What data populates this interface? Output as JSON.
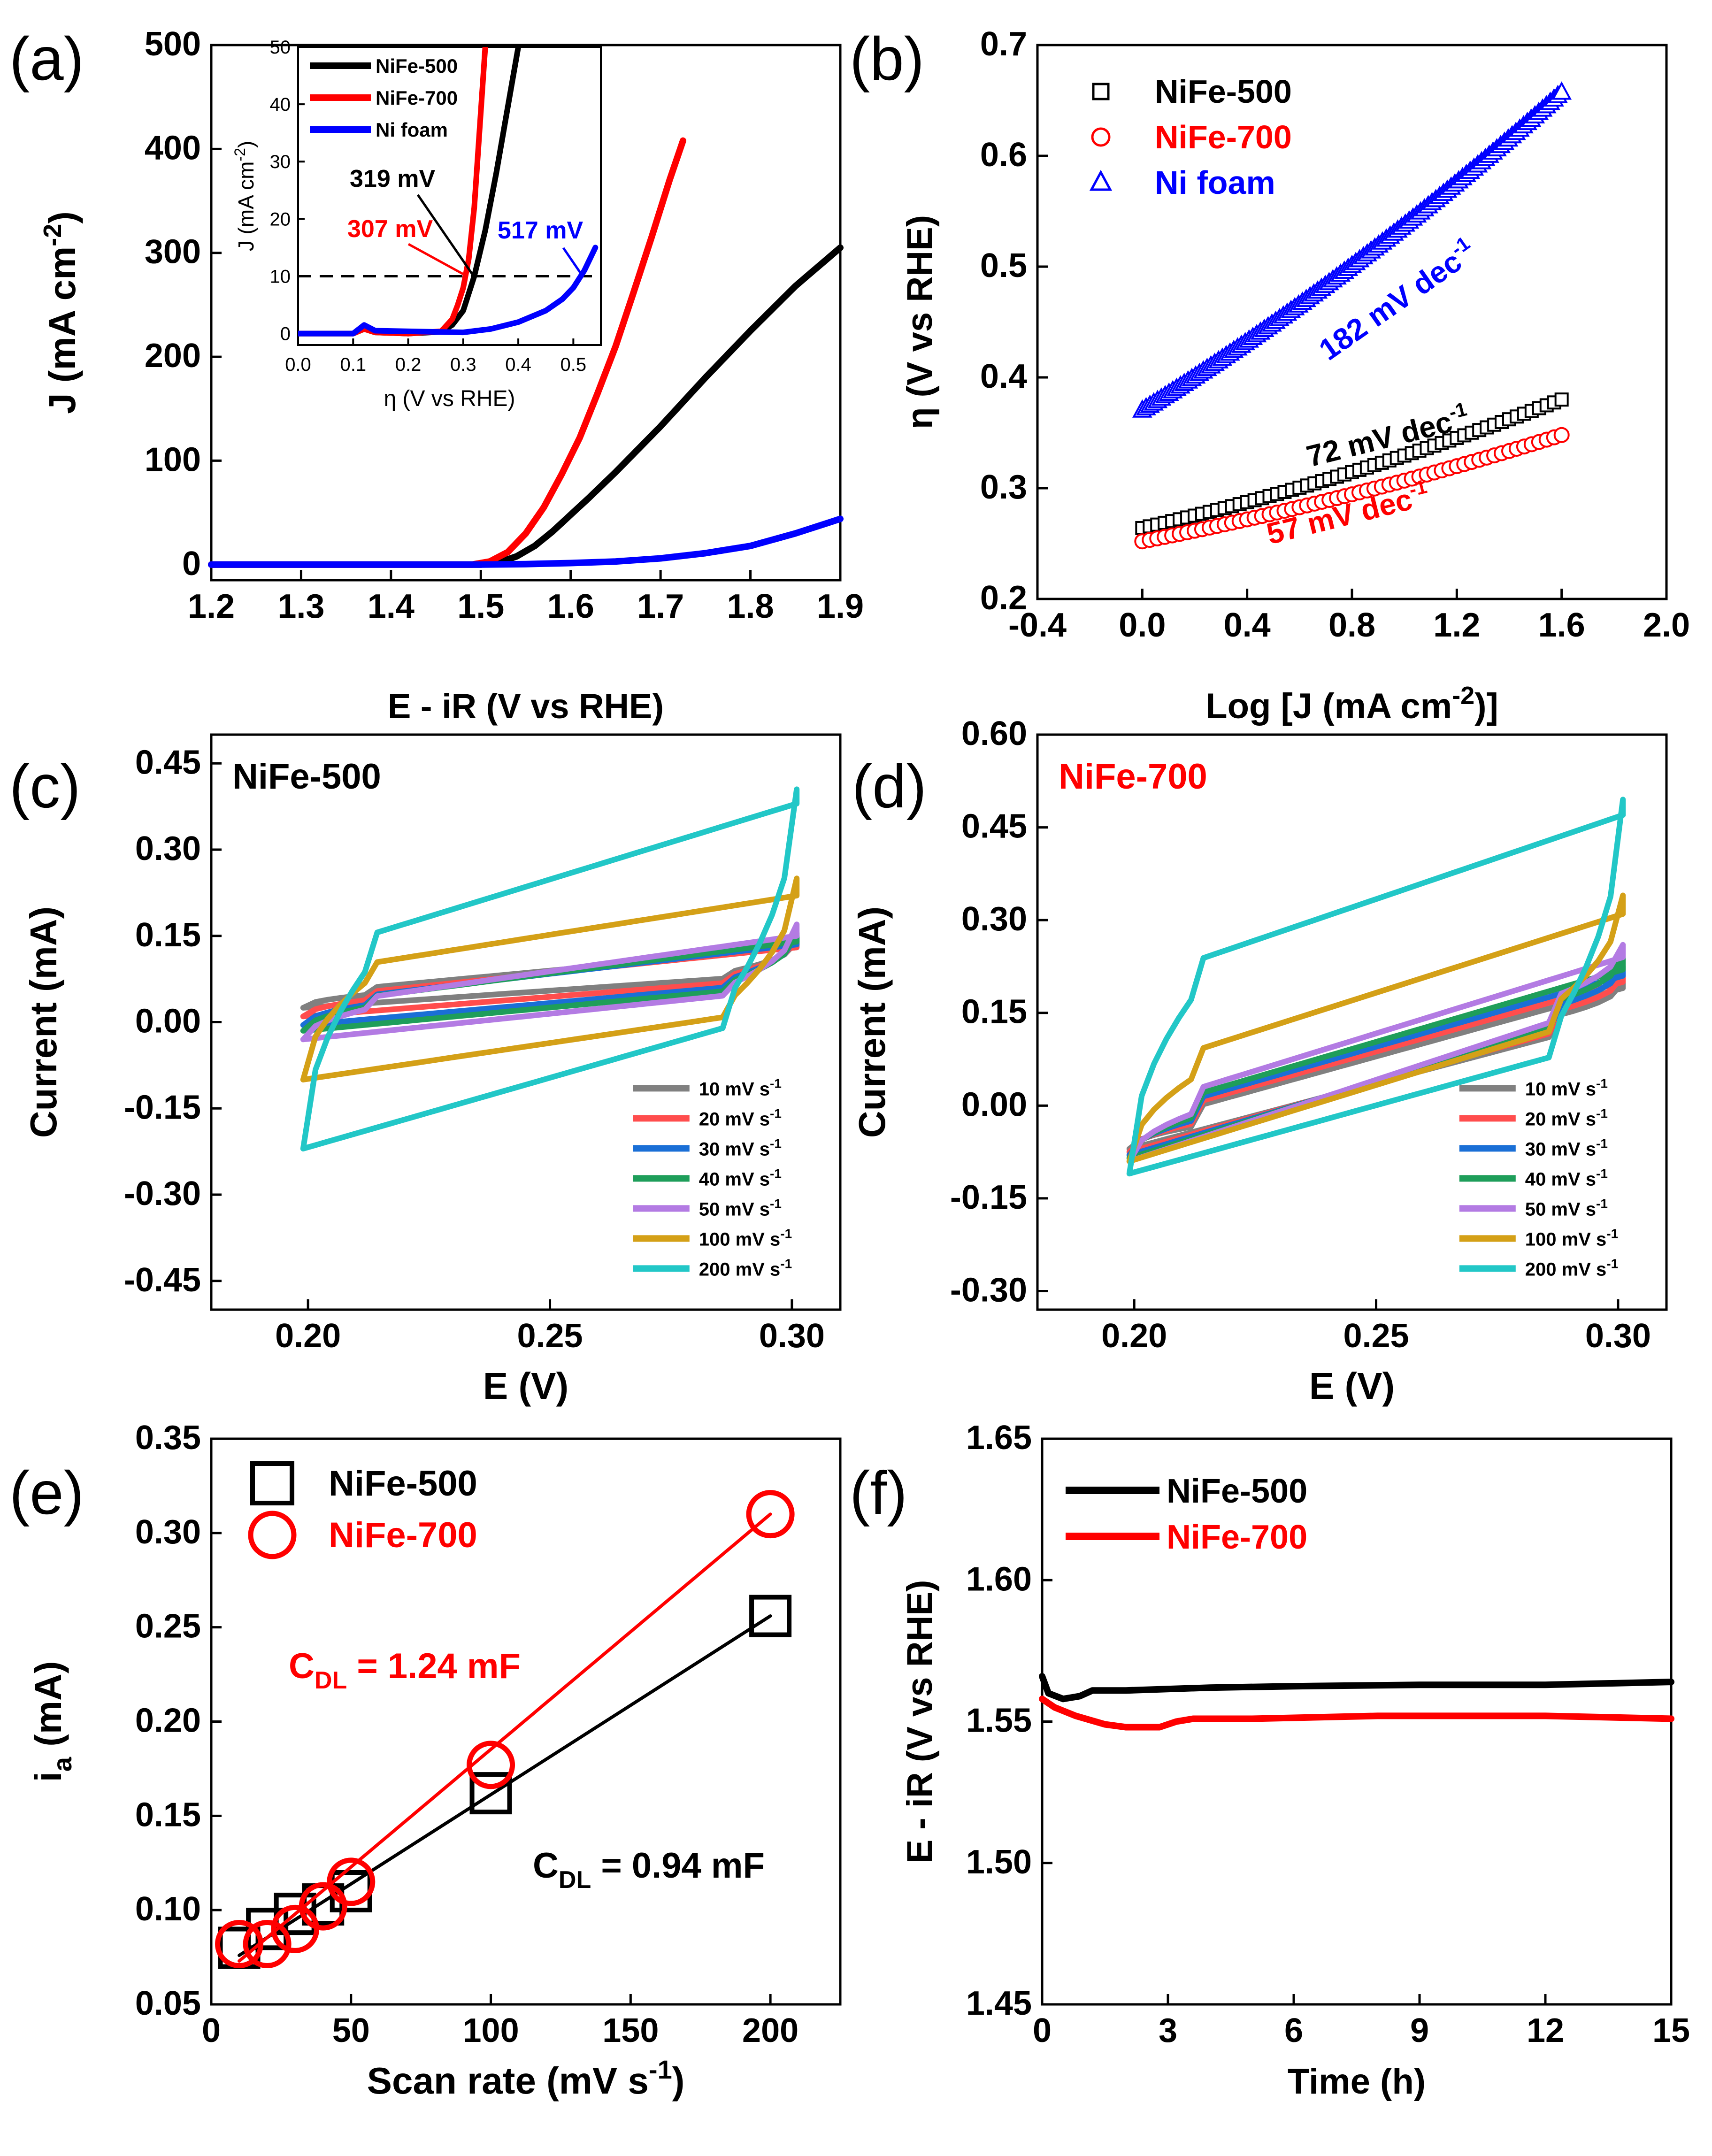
{
  "chart_data": [
    {
      "type": "line",
      "panel": "(a)",
      "xlabel": "E - iR (V vs RHE)",
      "ylabel": "J (mA cm",
      "ylabel_sup": "-2",
      "ylabel_close": ")",
      "xlim": [
        1.2,
        1.9
      ],
      "ylim": [
        -15,
        500
      ],
      "xticks": [
        "1.2",
        "1.3",
        "1.4",
        "1.5",
        "1.6",
        "1.7",
        "1.8",
        "1.9"
      ],
      "yticks": [
        "0",
        "100",
        "200",
        "300",
        "400",
        "500"
      ],
      "series": [
        {
          "name": "NiFe-500",
          "color": "#000000",
          "x": [
            1.2,
            1.5,
            1.52,
            1.54,
            1.56,
            1.58,
            1.6,
            1.62,
            1.65,
            1.7,
            1.75,
            1.8,
            1.85,
            1.9
          ],
          "y": [
            0,
            0,
            2,
            8,
            18,
            32,
            48,
            64,
            89,
            133,
            180,
            225,
            268,
            305
          ]
        },
        {
          "name": "NiFe-700",
          "color": "#ff0000",
          "x": [
            1.2,
            1.49,
            1.51,
            1.53,
            1.55,
            1.57,
            1.59,
            1.61,
            1.63,
            1.65,
            1.67,
            1.69,
            1.71,
            1.725
          ],
          "y": [
            0,
            0,
            3,
            12,
            30,
            55,
            87,
            122,
            165,
            210,
            262,
            315,
            370,
            408
          ]
        },
        {
          "name": "Ni foam",
          "color": "#0000ff",
          "x": [
            1.2,
            1.5,
            1.55,
            1.6,
            1.65,
            1.7,
            1.75,
            1.8,
            1.85,
            1.9
          ],
          "y": [
            0,
            0,
            0.5,
            1.5,
            3,
            6,
            11,
            18,
            30,
            44
          ]
        }
      ],
      "inset": {
        "xlabel": "η (V vs RHE)",
        "ylabel": "J (mA cm",
        "ylabel_sup": "-2",
        "ylabel_close": ")",
        "xlim": [
          0,
          0.55
        ],
        "ylim": [
          -2,
          50
        ],
        "xticks": [
          "0.0",
          "0.1",
          "0.2",
          "0.3",
          "0.4",
          "0.5"
        ],
        "yticks": [
          "0",
          "10",
          "20",
          "30",
          "40",
          "50"
        ],
        "reference_j": 10,
        "legend": [
          "NiFe-500",
          "NiFe-700",
          "Ni foam"
        ],
        "annotations": [
          {
            "text": "319 mV",
            "color": "#000000"
          },
          {
            "text": "307 mV",
            "color": "#ff0000"
          },
          {
            "text": "517 mV",
            "color": "#0000ff"
          }
        ],
        "series": [
          {
            "name": "NiFe-500",
            "color": "#000000",
            "x": [
              0,
              0.1,
              0.12,
              0.14,
              0.2,
              0.26,
              0.28,
              0.3,
              0.32,
              0.34,
              0.36,
              0.38,
              0.4
            ],
            "y": [
              0,
              0,
              0.8,
              0.2,
              0,
              0.3,
              1.5,
              4,
              10,
              18,
              28,
              39,
              50
            ]
          },
          {
            "name": "NiFe-700",
            "color": "#ff0000",
            "x": [
              0,
              0.1,
              0.12,
              0.14,
              0.2,
              0.26,
              0.28,
              0.29,
              0.3,
              0.31,
              0.32,
              0.33,
              0.34
            ],
            "y": [
              0,
              0,
              0.8,
              0.2,
              0,
              0.4,
              2.5,
              5,
              8,
              13,
              22,
              36,
              50
            ]
          },
          {
            "name": "Ni foam",
            "color": "#0000ff",
            "x": [
              0,
              0.1,
              0.12,
              0.14,
              0.3,
              0.35,
              0.4,
              0.45,
              0.48,
              0.5,
              0.52,
              0.54
            ],
            "y": [
              0,
              0,
              1.5,
              0.5,
              0.2,
              0.8,
              2,
              4,
              6,
              8,
              11,
              15
            ]
          }
        ]
      }
    },
    {
      "type": "scatter",
      "panel": "(b)",
      "xlabel": "Log [J (mA cm",
      "xlabel_sup": "-2",
      "xlabel_close": ")]",
      "ylabel": "η (V vs RHE)",
      "xlim": [
        -0.4,
        2.0
      ],
      "ylim": [
        0.2,
        0.7
      ],
      "xticks": [
        "-0.4",
        "0.0",
        "0.4",
        "0.8",
        "1.2",
        "1.6",
        "2.0"
      ],
      "yticks": [
        "0.2",
        "0.3",
        "0.4",
        "0.5",
        "0.6",
        "0.7"
      ],
      "legend": [
        "NiFe-500",
        "NiFe-700",
        "Ni foam"
      ],
      "slope_labels": [
        {
          "text": "72 mV dec",
          "sup": "-1",
          "color": "#000000"
        },
        {
          "text": "57 mV dec",
          "sup": "-1",
          "color": "#ff0000"
        },
        {
          "text": "182 mV dec",
          "sup": "-1",
          "color": "#0000ff"
        }
      ],
      "series": [
        {
          "name": "NiFe-500",
          "color": "#000000",
          "marker": "square",
          "y0": 0.264,
          "y1": 0.38,
          "x0": 0.0,
          "x1": 1.6,
          "curve": 0.35
        },
        {
          "name": "NiFe-700",
          "color": "#ff0000",
          "marker": "circle",
          "y0": 0.252,
          "y1": 0.348,
          "x0": 0.0,
          "x1": 1.6,
          "curve": 0.3
        },
        {
          "name": "Ni foam",
          "color": "#0000ff",
          "marker": "triangle",
          "y0": 0.37,
          "y1": 0.657,
          "x0": 0.0,
          "x1": 1.6,
          "curve": 0.22
        }
      ]
    },
    {
      "type": "line",
      "panel": "(c)",
      "title": "NiFe-500",
      "title_color": "#000000",
      "xlabel": "E (V)",
      "ylabel": "Current (mA)",
      "xlim": [
        0.18,
        0.31
      ],
      "ylim": [
        -0.5,
        0.5
      ],
      "xticks": [
        "0.20",
        "0.25",
        "0.30"
      ],
      "yticks": [
        "-0.45",
        "-0.30",
        "-0.15",
        "0.00",
        "0.15",
        "0.30",
        "0.45"
      ],
      "legend": [
        "10 mV s",
        "20 mV s",
        "30 mV s",
        "40 mV s",
        "50 mV s",
        "100 mV s",
        "200 mV s"
      ],
      "legend_sup": "-1",
      "series": [
        {
          "name": "10 mV s-1",
          "color": "#808080",
          "fwd": [
            0.035,
            0.13
          ],
          "rev": [
            0.095,
            0.025
          ],
          "end_high": 0.14
        },
        {
          "name": "20 mV s-1",
          "color": "#ff4d4d",
          "fwd": [
            0.025,
            0.13
          ],
          "rev": [
            0.09,
            0.01
          ],
          "end_high": 0.145
        },
        {
          "name": "30 mV s-1",
          "color": "#1a6fd6",
          "fwd": [
            0.015,
            0.135
          ],
          "rev": [
            0.085,
            -0.005
          ],
          "end_high": 0.15
        },
        {
          "name": "40 mV s-1",
          "color": "#1e9e5a",
          "fwd": [
            0.01,
            0.14
          ],
          "rev": [
            0.08,
            -0.015
          ],
          "end_high": 0.155
        },
        {
          "name": "50 mV s-1",
          "color": "#b37be3",
          "fwd": [
            0.005,
            0.15
          ],
          "rev": [
            0.075,
            -0.03
          ],
          "end_high": 0.17
        },
        {
          "name": "100 mV s-1",
          "color": "#d4a017",
          "fwd": [
            0.06,
            0.22
          ],
          "rev": [
            0.05,
            -0.1
          ],
          "end_high": 0.25
        },
        {
          "name": "200 mV s-1",
          "color": "#22c7c7",
          "fwd": [
            0.07,
            0.38
          ],
          "rev": [
            0.07,
            -0.22
          ],
          "end_high": 0.405
        }
      ]
    },
    {
      "type": "line",
      "panel": "(d)",
      "title": "NiFe-700",
      "title_color": "#ff0000",
      "xlabel": "E (V)",
      "ylabel": "Current (mA)",
      "xlim": [
        0.18,
        0.31
      ],
      "ylim": [
        -0.33,
        0.6
      ],
      "xticks": [
        "0.20",
        "0.25",
        "0.30"
      ],
      "yticks": [
        "-0.30",
        "-0.15",
        "0.00",
        "0.15",
        "0.30",
        "0.45",
        "0.60"
      ],
      "legend": [
        "10 mV s",
        "20 mV s",
        "30 mV s",
        "40 mV s",
        "50 mV s",
        "100 mV s",
        "200 mV s"
      ],
      "legend_sup": "-1",
      "series": [
        {
          "name": "10 mV s-1",
          "color": "#808080",
          "fwd": [
            -0.07,
            0.19
          ],
          "rev": [
            0.18,
            -0.07
          ],
          "end_high": 0.2
        },
        {
          "name": "20 mV s-1",
          "color": "#ff4d4d",
          "fwd": [
            -0.065,
            0.2
          ],
          "rev": [
            0.19,
            -0.075
          ],
          "end_high": 0.21
        },
        {
          "name": "30 mV s-1",
          "color": "#1a6fd6",
          "fwd": [
            -0.06,
            0.21
          ],
          "rev": [
            0.2,
            -0.08
          ],
          "end_high": 0.225
        },
        {
          "name": "40 mV s-1",
          "color": "#1e9e5a",
          "fwd": [
            -0.055,
            0.22
          ],
          "rev": [
            0.21,
            -0.085
          ],
          "end_high": 0.24
        },
        {
          "name": "50 mV s-1",
          "color": "#b37be3",
          "fwd": [
            -0.05,
            0.24
          ],
          "rev": [
            0.22,
            -0.09
          ],
          "end_high": 0.26
        },
        {
          "name": "100 mV s-1",
          "color": "#d4a017",
          "fwd": [
            0.01,
            0.31
          ],
          "rev": [
            0.2,
            -0.09
          ],
          "end_high": 0.34
        },
        {
          "name": "200 mV s-1",
          "color": "#22c7c7",
          "fwd": [
            0.15,
            0.47
          ],
          "rev": [
            0.15,
            -0.11
          ],
          "end_high": 0.495
        }
      ]
    },
    {
      "type": "scatter",
      "panel": "(e)",
      "xlabel": "Scan rate (mV s",
      "xlabel_sup": "-1",
      "xlabel_close": ")",
      "ylabel": "i",
      "ylabel_sub": "a",
      "ylabel_rest": " (mA)",
      "xlim": [
        0,
        225
      ],
      "ylim": [
        0.05,
        0.35
      ],
      "xticks": [
        "0",
        "50",
        "100",
        "150",
        "200"
      ],
      "yticks": [
        "0.05",
        "0.10",
        "0.15",
        "0.20",
        "0.25",
        "0.30",
        "0.35"
      ],
      "legend": [
        "NiFe-500",
        "NiFe-700"
      ],
      "fit_labels": [
        {
          "main": "C",
          "sub": "DL",
          "rest": " = 1.24 mF",
          "color": "#ff0000"
        },
        {
          "main": "C",
          "sub": "DL",
          "rest": " = 0.94 mF",
          "color": "#000000"
        }
      ],
      "series": [
        {
          "name": "NiFe-500",
          "color": "#000000",
          "marker": "square",
          "x": [
            10,
            20,
            30,
            40,
            50,
            100,
            200
          ],
          "y": [
            0.08,
            0.09,
            0.098,
            0.103,
            0.11,
            0.162,
            0.256
          ],
          "fit": [
            [
              10,
              0.076
            ],
            [
              200,
              0.256
            ]
          ]
        },
        {
          "name": "NiFe-700",
          "color": "#ff0000",
          "marker": "circle",
          "x": [
            10,
            20,
            30,
            40,
            50,
            100,
            200
          ],
          "y": [
            0.082,
            0.082,
            0.09,
            0.102,
            0.115,
            0.177,
            0.31
          ],
          "fit": [
            [
              10,
              0.073
            ],
            [
              200,
              0.31
            ]
          ]
        }
      ]
    },
    {
      "type": "line",
      "panel": "(f)",
      "xlabel": "Time (h)",
      "ylabel": "E - iR (V vs RHE)",
      "xlim": [
        0,
        15
      ],
      "ylim": [
        1.45,
        1.65
      ],
      "xticks": [
        "0",
        "3",
        "6",
        "9",
        "12",
        "15"
      ],
      "yticks": [
        "1.45",
        "1.50",
        "1.55",
        "1.60",
        "1.65"
      ],
      "legend": [
        "NiFe-500",
        "NiFe-700"
      ],
      "series": [
        {
          "name": "NiFe-500",
          "color": "#000000",
          "x": [
            0,
            0.15,
            0.5,
            0.9,
            1.2,
            2,
            4,
            6,
            9,
            12,
            15
          ],
          "y": [
            1.566,
            1.56,
            1.558,
            1.559,
            1.561,
            1.561,
            1.562,
            1.5625,
            1.563,
            1.563,
            1.564
          ]
        },
        {
          "name": "NiFe-700",
          "color": "#ff0000",
          "x": [
            0,
            0.3,
            0.8,
            1.5,
            2.0,
            2.8,
            3.2,
            3.6,
            5,
            8,
            12,
            15
          ],
          "y": [
            1.558,
            1.555,
            1.552,
            1.549,
            1.548,
            1.548,
            1.55,
            1.551,
            1.551,
            1.552,
            1.552,
            1.551
          ]
        }
      ]
    }
  ]
}
